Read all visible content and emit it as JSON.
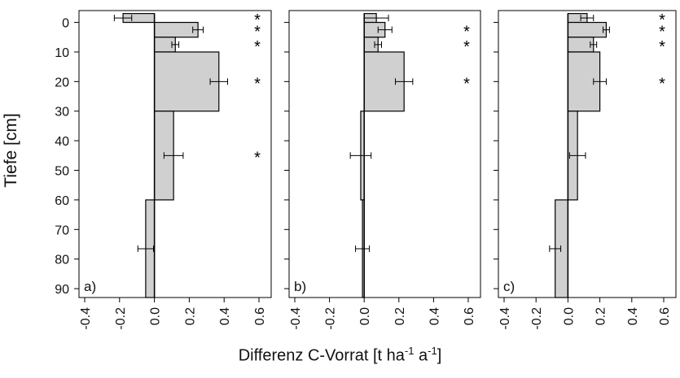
{
  "chart_data": [
    {
      "type": "bar",
      "orientation": "horizontal",
      "panel_label": "a)",
      "depth_bins": [
        [
          -3,
          0
        ],
        [
          0,
          5
        ],
        [
          5,
          10
        ],
        [
          10,
          30
        ],
        [
          30,
          60
        ],
        [
          60,
          93
        ]
      ],
      "values": [
        -0.18,
        0.25,
        0.12,
        0.37,
        0.11,
        -0.05
      ],
      "errors": [
        0.05,
        0.03,
        0.02,
        0.05,
        0.055,
        0.045
      ],
      "error_depths": [
        -1.5,
        2.5,
        7.5,
        20,
        45,
        76.5
      ],
      "significant": [
        true,
        true,
        true,
        true,
        true,
        false
      ],
      "xlim": [
        -0.4,
        0.6
      ],
      "ylim": [
        93,
        -4
      ]
    },
    {
      "type": "bar",
      "orientation": "horizontal",
      "panel_label": "b)",
      "depth_bins": [
        [
          -3,
          0
        ],
        [
          0,
          5
        ],
        [
          5,
          10
        ],
        [
          10,
          30
        ],
        [
          30,
          60
        ],
        [
          60,
          93
        ]
      ],
      "values": [
        0.07,
        0.12,
        0.08,
        0.23,
        -0.02,
        -0.01
      ],
      "errors": [
        0.07,
        0.04,
        0.02,
        0.05,
        0.06,
        0.04
      ],
      "error_depths": [
        -1.5,
        2.5,
        7.5,
        20,
        45,
        76.5
      ],
      "significant": [
        false,
        true,
        true,
        true,
        false,
        false
      ],
      "xlim": [
        -0.4,
        0.6
      ],
      "ylim": [
        93,
        -4
      ]
    },
    {
      "type": "bar",
      "orientation": "horizontal",
      "panel_label": "c)",
      "depth_bins": [
        [
          -3,
          0
        ],
        [
          0,
          5
        ],
        [
          5,
          10
        ],
        [
          10,
          30
        ],
        [
          30,
          60
        ],
        [
          60,
          93
        ]
      ],
      "values": [
        0.12,
        0.24,
        0.16,
        0.2,
        0.06,
        -0.08
      ],
      "errors": [
        0.04,
        0.02,
        0.02,
        0.04,
        0.05,
        0.035
      ],
      "error_depths": [
        -1.5,
        2.5,
        7.5,
        20,
        45,
        76.5
      ],
      "significant": [
        true,
        true,
        true,
        true,
        false,
        false
      ],
      "xlim": [
        -0.4,
        0.6
      ],
      "ylim": [
        93,
        -4
      ]
    }
  ],
  "y_ticks": [
    "0",
    "10",
    "20",
    "30",
    "40",
    "50",
    "60",
    "70",
    "80",
    "90"
  ],
  "y_tick_values": [
    0,
    10,
    20,
    30,
    40,
    50,
    60,
    70,
    80,
    90
  ],
  "x_ticks": [
    "-0.4",
    "-0.2",
    "0.0",
    "0.2",
    "0.4",
    "0.6"
  ],
  "x_tick_values": [
    -0.4,
    -0.2,
    0.0,
    0.2,
    0.4,
    0.6
  ],
  "ylabel": "Tiefe [cm]",
  "xlabel": {
    "main": "Differenz C-Vorrat [t ha",
    "exp1": "-1",
    "mid": " a",
    "exp2": "-1",
    "end": "]"
  },
  "significance_marker": "*",
  "colors": {
    "bar_fill": "#d0d0d0",
    "stroke": "#000000"
  }
}
